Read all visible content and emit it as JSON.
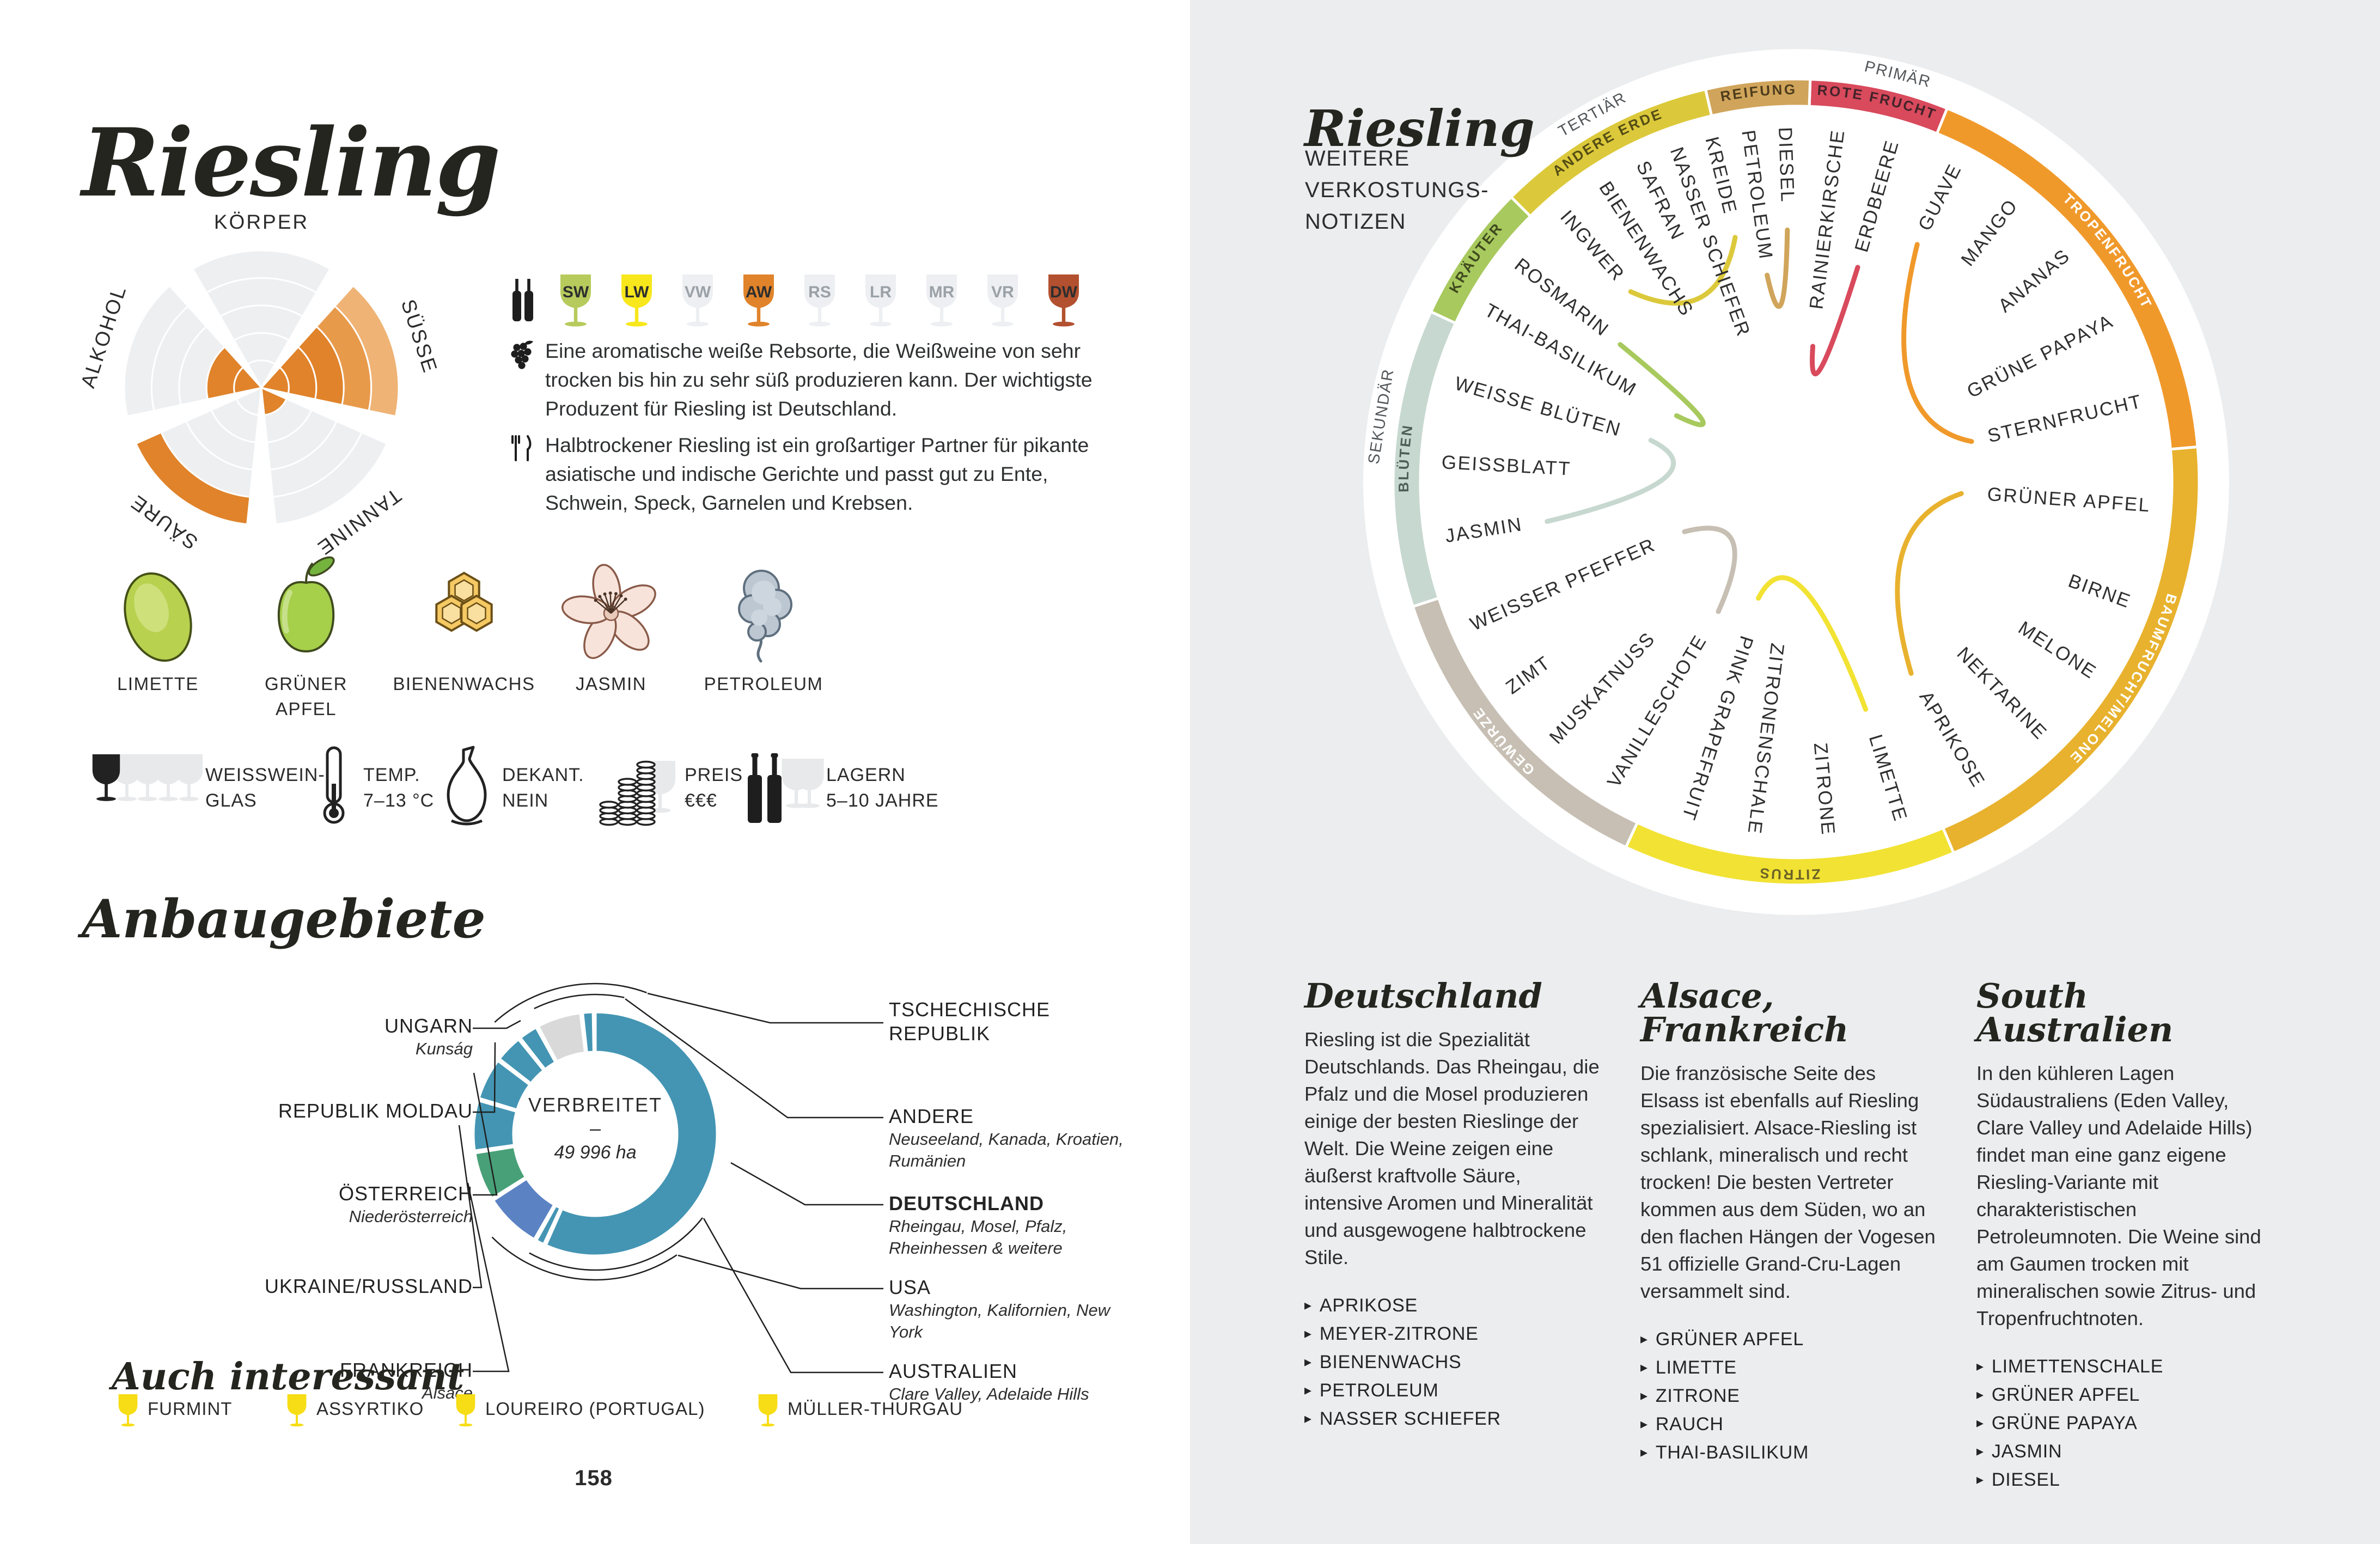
{
  "left_page": {
    "title": "Riesling",
    "profile": {
      "axes": [
        {
          "label": "KÖRPER",
          "bands": [
            "g",
            "g",
            "g",
            "g",
            "g"
          ]
        },
        {
          "label": "SÜSSE",
          "bands": [
            "o",
            "o",
            "o",
            "m",
            "l"
          ]
        },
        {
          "label": "TANNINE",
          "bands": [
            "o",
            "g",
            "g",
            "g",
            "g"
          ]
        },
        {
          "label": "SÄURE",
          "bands": [
            "g",
            "g",
            "g",
            "g",
            "o"
          ]
        },
        {
          "label": "ALKOHOL",
          "bands": [
            "o",
            "o",
            "g",
            "g",
            "g"
          ]
        }
      ]
    },
    "style_scale": {
      "glasses": [
        {
          "code": "SW",
          "fill": "#b6cb5c",
          "text": "#2e2e2e"
        },
        {
          "code": "LW",
          "fill": "#f8e71c",
          "text": "#2e2e2e"
        },
        {
          "code": "VW",
          "fill": "#edeff2",
          "text": "#9aa1a7"
        },
        {
          "code": "AW",
          "fill": "#e0832a",
          "text": "#2e2e2e"
        },
        {
          "code": "RS",
          "fill": "#edeff2",
          "text": "#9aa1a7"
        },
        {
          "code": "LR",
          "fill": "#edeff2",
          "text": "#9aa1a7"
        },
        {
          "code": "MR",
          "fill": "#edeff2",
          "text": "#9aa1a7"
        },
        {
          "code": "VR",
          "fill": "#edeff2",
          "text": "#9aa1a7"
        },
        {
          "code": "DW",
          "fill": "#b2502f",
          "text": "#2e2e2e"
        }
      ]
    },
    "notes": [
      {
        "icon": "grapes-icon",
        "text": "Eine aromatische weiße Rebsorte, die Weißweine von sehr trocken bis hin zu sehr süß produzieren kann. Der wichtigste Produzent für Riesling ist Deutschland."
      },
      {
        "icon": "cutlery-icon",
        "text": "Halbtrockener Riesling ist ein großartiger Partner für pikante asiatische und indische Gerichte und passt gut zu Ente, Schwein, Speck, Garnelen und Krebsen."
      }
    ],
    "flavors": [
      {
        "label": "LIMETTE",
        "icon": "lime-icon"
      },
      {
        "label": "GRÜNER APFEL",
        "icon": "green-apple-icon"
      },
      {
        "label": "BIENENWACHS",
        "icon": "honeycomb-icon"
      },
      {
        "label": "JASMIN",
        "icon": "jasmine-icon"
      },
      {
        "label": "PETROLEUM",
        "icon": "petroleum-icon"
      }
    ],
    "facts": [
      {
        "icon": "white-wine-glass-icon",
        "lines": [
          "WEISSWEIN-",
          "GLAS"
        ]
      },
      {
        "icon": "thermometer-icon",
        "lines": [
          "TEMP.",
          "7–13 °C"
        ]
      },
      {
        "icon": "decanter-icon",
        "lines": [
          "DEKANT.",
          "NEIN"
        ]
      },
      {
        "icon": "coins-icon",
        "lines": [
          "PREIS",
          "€€€"
        ]
      },
      {
        "icon": "bottles-icon",
        "lines": [
          "LAGERN",
          "5–10 JAHRE"
        ]
      }
    ],
    "regions": {
      "heading": "Anbaugebiete",
      "center": {
        "line1": "VERBREITET",
        "line2": "–",
        "line3": "49 996 ha"
      },
      "segments": [
        {
          "name": "DEUTSCHLAND",
          "color": "#4495b3",
          "a0": 0,
          "a1": 204
        },
        {
          "name": "AUSTRALIEN",
          "color": "#4495b3",
          "a0": 205,
          "a1": 209
        },
        {
          "name": "USA",
          "color": "#5b83c4",
          "a0": 210,
          "a1": 237
        },
        {
          "name": "FRANKREICH",
          "color": "#48a078",
          "a0": 238,
          "a1": 261
        },
        {
          "name": "UKRAINE/RUSSLAND",
          "color": "#4495b3",
          "a0": 262,
          "a1": 286
        },
        {
          "name": "ÖSTERREICH",
          "color": "#4495b3",
          "a0": 287,
          "a1": 307
        },
        {
          "name": "REPUBLIK MOLDAU",
          "color": "#4495b3",
          "a0": 308,
          "a1": 321
        },
        {
          "name": "UNGARN",
          "color": "#4495b3",
          "a0": 322,
          "a1": 331
        },
        {
          "name": "ANDERE",
          "color": "#d9d9d9",
          "a0": 332,
          "a1": 353
        },
        {
          "name": "TSCHECHISCHE REPUBLIK",
          "color": "#4495b3",
          "a0": 354,
          "a1": 359
        }
      ],
      "labels_left": [
        {
          "name": "UNGARN",
          "sub": "Kunság"
        },
        {
          "name": "REPUBLIK MOLDAU",
          "sub": ""
        },
        {
          "name": "ÖSTERREICH",
          "sub": "Niederösterreich"
        },
        {
          "name": "UKRAINE/RUSSLAND",
          "sub": ""
        },
        {
          "name": "FRANKREICH",
          "sub": "Alsace"
        }
      ],
      "labels_right": [
        {
          "name": "TSCHECHISCHE REPUBLIK",
          "sub": ""
        },
        {
          "name": "ANDERE",
          "sub": "Neuseeland, Kanada, Kroatien, Rumänien"
        },
        {
          "name": "DEUTSCHLAND",
          "sub": "Rheingau, Mosel, Pfalz, Rheinhessen & weitere",
          "bold": true
        },
        {
          "name": "USA",
          "sub": "Washington, Kalifornien, New York"
        },
        {
          "name": "AUSTRALIEN",
          "sub": "Clare Valley, Adelaide Hills"
        }
      ]
    },
    "also_interesting": {
      "heading": "Auch interessant",
      "items": [
        "FURMINT",
        "ASSYRTIKO",
        "LOUREIRO (PORTUGAL)",
        "MÜLLER-THURGAU"
      ]
    },
    "page_number": "158"
  },
  "right_page": {
    "title": "Riesling",
    "subtitle_lines": [
      "WEITERE",
      "VERKOSTUNGS-",
      "NOTIZEN"
    ],
    "wheel": {
      "level_labels": [
        {
          "text": "PRIMÄR",
          "a": 14
        },
        {
          "text": "SEKUNDÄR",
          "a": 279
        },
        {
          "text": "TERTIÄR",
          "a": 331
        }
      ],
      "categories": [
        {
          "name": "ROTE FRUCHT",
          "color": "#d84a5c",
          "text_color": "#43232a",
          "a0": 2,
          "a1": 22,
          "aromas": [
            {
              "name": "RAINIERKIRSCHE",
              "a": 7
            },
            {
              "name": "ERDBEERE",
              "a": 16
            }
          ]
        },
        {
          "name": "TROPENFRUCHT",
          "color": "#f0992b",
          "text_color": "#ffffff",
          "a0": 22,
          "a1": 85,
          "aromas": [
            {
              "name": "GUAVE",
              "a": 27
            },
            {
              "name": "MANGO",
              "a": 38
            },
            {
              "name": "ANANAS",
              "a": 50
            },
            {
              "name": "GRÜNE PAPAYA",
              "a": 63
            },
            {
              "name": "STERNFRUCHT",
              "a": 77
            }
          ]
        },
        {
          "name": "BAUMFRUCHT/MELONE",
          "color": "#e8b22e",
          "text_color": "#ffffff",
          "a0": 85,
          "a1": 157,
          "aromas": [
            {
              "name": "GRÜNER APFEL",
              "a": 94
            },
            {
              "name": "BIRNE",
              "a": 110
            },
            {
              "name": "MELONE",
              "a": 123
            },
            {
              "name": "NEKTARINE",
              "a": 136
            },
            {
              "name": "APRIKOSE",
              "a": 149
            }
          ]
        },
        {
          "name": "ZITRUS",
          "color": "#f2e233",
          "text_color": "#6b6327",
          "a0": 157,
          "a1": 205,
          "aromas": [
            {
              "name": "LIMETTE",
              "a": 163
            },
            {
              "name": "ZITRONE",
              "a": 175
            },
            {
              "name": "ZITRONENSCHALE",
              "a": 187
            },
            {
              "name": "PINK GRAPEFRUIT",
              "a": 198
            }
          ]
        },
        {
          "name": "GEWÜRZE",
          "color": "#c7bfb3",
          "text_color": "#ffffff",
          "a0": 205,
          "a1": 252,
          "aromas": [
            {
              "name": "VANILLESCHOTE",
              "a": 211
            },
            {
              "name": "MUSKATNUSS",
              "a": 223
            },
            {
              "name": "ZIMT",
              "a": 234
            },
            {
              "name": "WEISSER PFEFFER",
              "a": 246
            }
          ]
        },
        {
          "name": "BLÜTEN",
          "color": "#c7d8d0",
          "text_color": "#4e5e58",
          "a0": 252,
          "a1": 295,
          "aromas": [
            {
              "name": "JASMIN",
              "a": 261
            },
            {
              "name": "GEISSBLATT",
              "a": 273
            },
            {
              "name": "WEISSE BLÜTEN",
              "a": 286
            }
          ]
        },
        {
          "name": "KRÄUTER",
          "color": "#a8c95e",
          "text_color": "#3f4a1e",
          "a0": 295,
          "a1": 315,
          "aromas": [
            {
              "name": "THAI-BASILIKUM",
              "a": 299
            },
            {
              "name": "ROSMARIN",
              "a": 308
            }
          ]
        },
        {
          "name": "ANDERE ERDE",
          "color": "#dcc93b",
          "text_color": "#554d14",
          "a0": 315,
          "a1": 347,
          "aromas": [
            {
              "name": "INGWER",
              "a": 319
            },
            {
              "name": "BIENENWACHS",
              "a": 327
            },
            {
              "name": "SAFRAN",
              "a": 334
            },
            {
              "name": "NASSER SCHIEFER",
              "a": 340
            },
            {
              "name": "KREIDE",
              "a": 346
            }
          ]
        },
        {
          "name": "REIFUNG",
          "color": "#d0a55b",
          "text_color": "#4e3c1c",
          "a0": 347,
          "a1": 362,
          "aromas": [
            {
              "name": "PETROLEUM",
              "a": 352
            },
            {
              "name": "DIESEL",
              "a": 358
            }
          ]
        }
      ],
      "pair_curves": [
        [
          "RAINIERKIRSCHE",
          "ERDBEERE"
        ],
        [
          "GUAVE",
          "STERNFRUCHT"
        ],
        [
          "GRÜNER APFEL",
          "APRIKOSE"
        ],
        [
          "LIMETTE",
          "PINK GRAPEFRUIT"
        ],
        [
          "VANILLESCHOTE",
          "WEISSER PFEFFER"
        ],
        [
          "JASMIN",
          "WEISSE BLÜTEN"
        ],
        [
          "ROSMARIN",
          "THAI-BASILIKUM"
        ],
        [
          "KREIDE",
          "INGWER"
        ],
        [
          "PETROLEUM",
          "DIESEL"
        ]
      ]
    },
    "columns": [
      {
        "heading": "Deutschland",
        "body": "Riesling ist die Spezialität Deutschlands. Das Rheingau, die Pfalz und die Mosel produzieren einige der besten Rieslinge der Welt. Die Weine zeigen eine äußerst kraftvolle Säure, intensive Aromen und Mineralität und ausgewogene halbtrockene Stile.",
        "bullets": [
          "APRIKOSE",
          "MEYER-ZITRONE",
          "BIENENWACHS",
          "PETROLEUM",
          "NASSER SCHIEFER"
        ]
      },
      {
        "heading": "Alsace, Frankreich",
        "body": "Die französische Seite des Elsass ist ebenfalls auf Riesling spezialisiert. Alsace-Riesling ist schlank, mineralisch und recht trocken! Die besten Vertreter kommen aus dem Süden, wo an den flachen Hängen der Vogesen 51 offizielle Grand-Cru-Lagen versammelt sind.",
        "bullets": [
          "GRÜNER APFEL",
          "LIMETTE",
          "ZITRONE",
          "RAUCH",
          "THAI-BASILIKUM"
        ]
      },
      {
        "heading": "South Australien",
        "body": "In den kühleren Lagen Südaustraliens (Eden Valley, Clare Valley und Adelaide Hills) findet man eine ganz eigene Riesling-Variante mit charakteristischen Petroleumnoten. Die Weine sind am Gaumen trocken mit mineralischen sowie Zitrus- und Tropenfruchtnoten.",
        "bullets": [
          "LIMETTENSCHALE",
          "GRÜNER APFEL",
          "GRÜNE PAPAYA",
          "JASMIN",
          "DIESEL"
        ]
      }
    ]
  }
}
